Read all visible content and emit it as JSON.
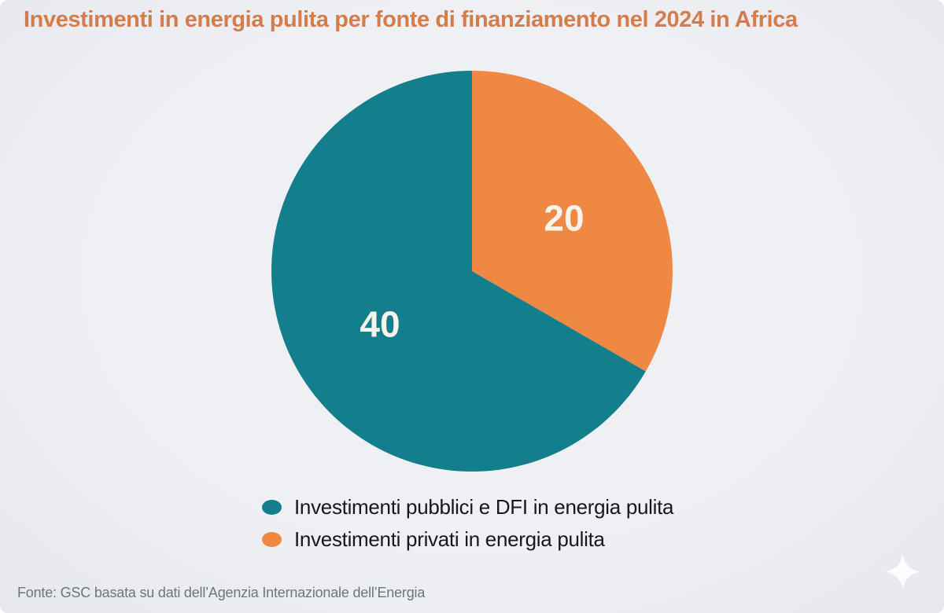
{
  "source_note": "Fonte: GSC basata su dati dell’Agenzia Internazionale dell’Energia",
  "colors": {
    "background": "#eef0f4",
    "title": "#d47c4c",
    "teal": "#137e8c",
    "orange": "#ee8843",
    "data_label": "#f8f4ec",
    "legend_text": "#15181c",
    "source_text": "#6d757e",
    "sparkle": "#ffffff"
  },
  "icons": {
    "sparkle": "four-pointed-star"
  },
  "chart_data": {
    "type": "pie",
    "title": "Investimenti in energia pulita per fonte di finanziamento nel 2024 in Africa",
    "slices": [
      {
        "label": "Investimenti pubblici e DFI in energia pulita",
        "value": 40,
        "data_label": "40",
        "color": "#137e8c"
      },
      {
        "label": "Investimenti privati in energia pulita",
        "value": 20,
        "data_label": "20",
        "color": "#ee8843"
      }
    ],
    "total": 60,
    "start_angle_deg": 90,
    "direction": "counterclockwise",
    "label_radius_ratio": 0.53,
    "legend_position": "bottom",
    "source": "Fonte: GSC basata su dati dell’Agenzia Internazionale dell’Energia"
  }
}
